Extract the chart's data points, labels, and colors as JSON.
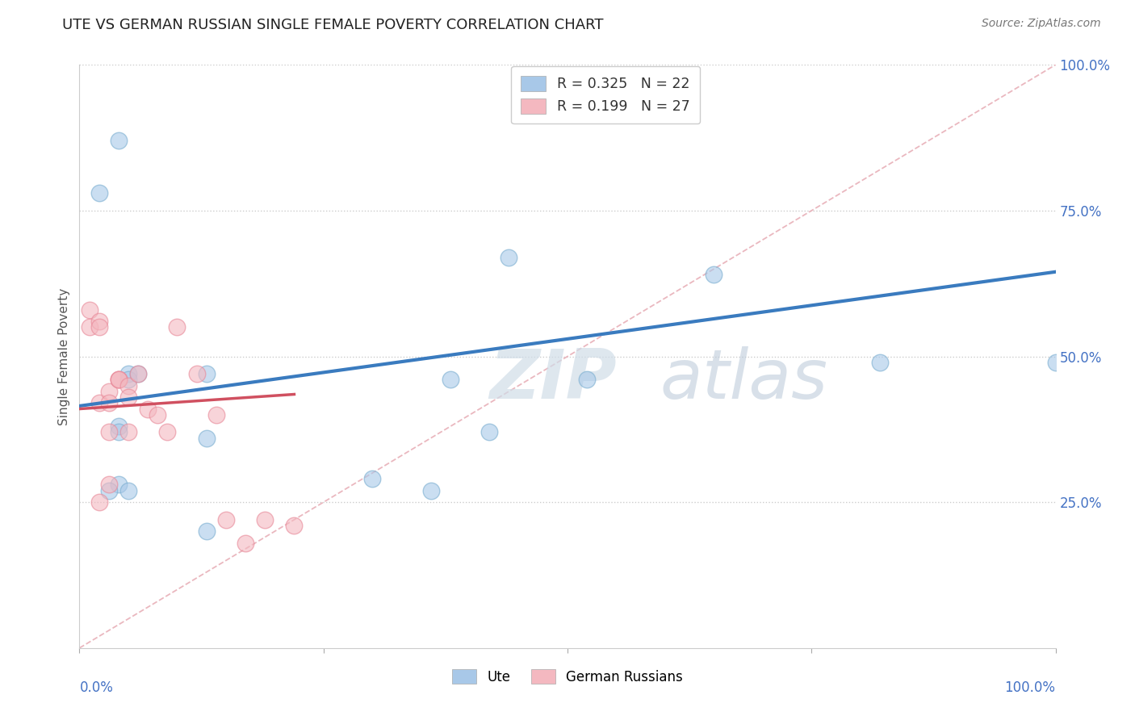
{
  "title": "UTE VS GERMAN RUSSIAN SINGLE FEMALE POVERTY CORRELATION CHART",
  "source": "Source: ZipAtlas.com",
  "ylabel": "Single Female Poverty",
  "ylabel_right_ticks": [
    "100.0%",
    "75.0%",
    "50.0%",
    "25.0%"
  ],
  "ylabel_right_vals": [
    1.0,
    0.75,
    0.5,
    0.25
  ],
  "legend_ute_r": "0.325",
  "legend_ute_n": "22",
  "legend_gr_r": "0.199",
  "legend_gr_n": "27",
  "ute_color": "#a8c8e8",
  "ute_edge_color": "#7aaed0",
  "ute_trendline_color": "#3a7bbf",
  "gr_color": "#f4b8c0",
  "gr_edge_color": "#e88898",
  "gr_trendline_color": "#d05060",
  "diagonal_color": "#e8b0b8",
  "background_color": "#ffffff",
  "grid_color": "#cccccc",
  "ute_points_x": [
    0.04,
    0.02,
    0.13,
    0.05,
    0.05,
    0.06,
    0.04,
    0.04,
    0.04,
    0.03,
    0.05,
    0.13,
    0.36,
    0.65,
    0.38,
    0.13,
    0.42,
    0.82,
    0.3,
    1.0,
    0.44,
    0.52
  ],
  "ute_points_y": [
    0.87,
    0.78,
    0.47,
    0.47,
    0.46,
    0.47,
    0.38,
    0.37,
    0.28,
    0.27,
    0.27,
    0.36,
    0.27,
    0.64,
    0.46,
    0.2,
    0.37,
    0.49,
    0.29,
    0.49,
    0.67,
    0.46
  ],
  "gr_points_x": [
    0.01,
    0.01,
    0.02,
    0.02,
    0.02,
    0.03,
    0.03,
    0.03,
    0.04,
    0.04,
    0.04,
    0.05,
    0.05,
    0.06,
    0.07,
    0.08,
    0.09,
    0.1,
    0.12,
    0.14,
    0.15,
    0.17,
    0.19,
    0.22,
    0.05,
    0.03,
    0.02
  ],
  "gr_points_y": [
    0.58,
    0.55,
    0.56,
    0.55,
    0.42,
    0.44,
    0.42,
    0.37,
    0.46,
    0.46,
    0.46,
    0.45,
    0.43,
    0.47,
    0.41,
    0.4,
    0.37,
    0.55,
    0.47,
    0.4,
    0.22,
    0.18,
    0.22,
    0.21,
    0.37,
    0.28,
    0.25
  ],
  "watermark_zip": "ZIP",
  "watermark_atlas": "atlas",
  "xlim": [
    0.0,
    1.0
  ],
  "ylim": [
    0.0,
    1.0
  ],
  "ute_trend_x0": 0.0,
  "ute_trend_y0": 0.415,
  "ute_trend_x1": 1.0,
  "ute_trend_y1": 0.645,
  "gr_trend_x0": 0.0,
  "gr_trend_y0": 0.41,
  "gr_trend_x1": 0.22,
  "gr_trend_y1": 0.435
}
